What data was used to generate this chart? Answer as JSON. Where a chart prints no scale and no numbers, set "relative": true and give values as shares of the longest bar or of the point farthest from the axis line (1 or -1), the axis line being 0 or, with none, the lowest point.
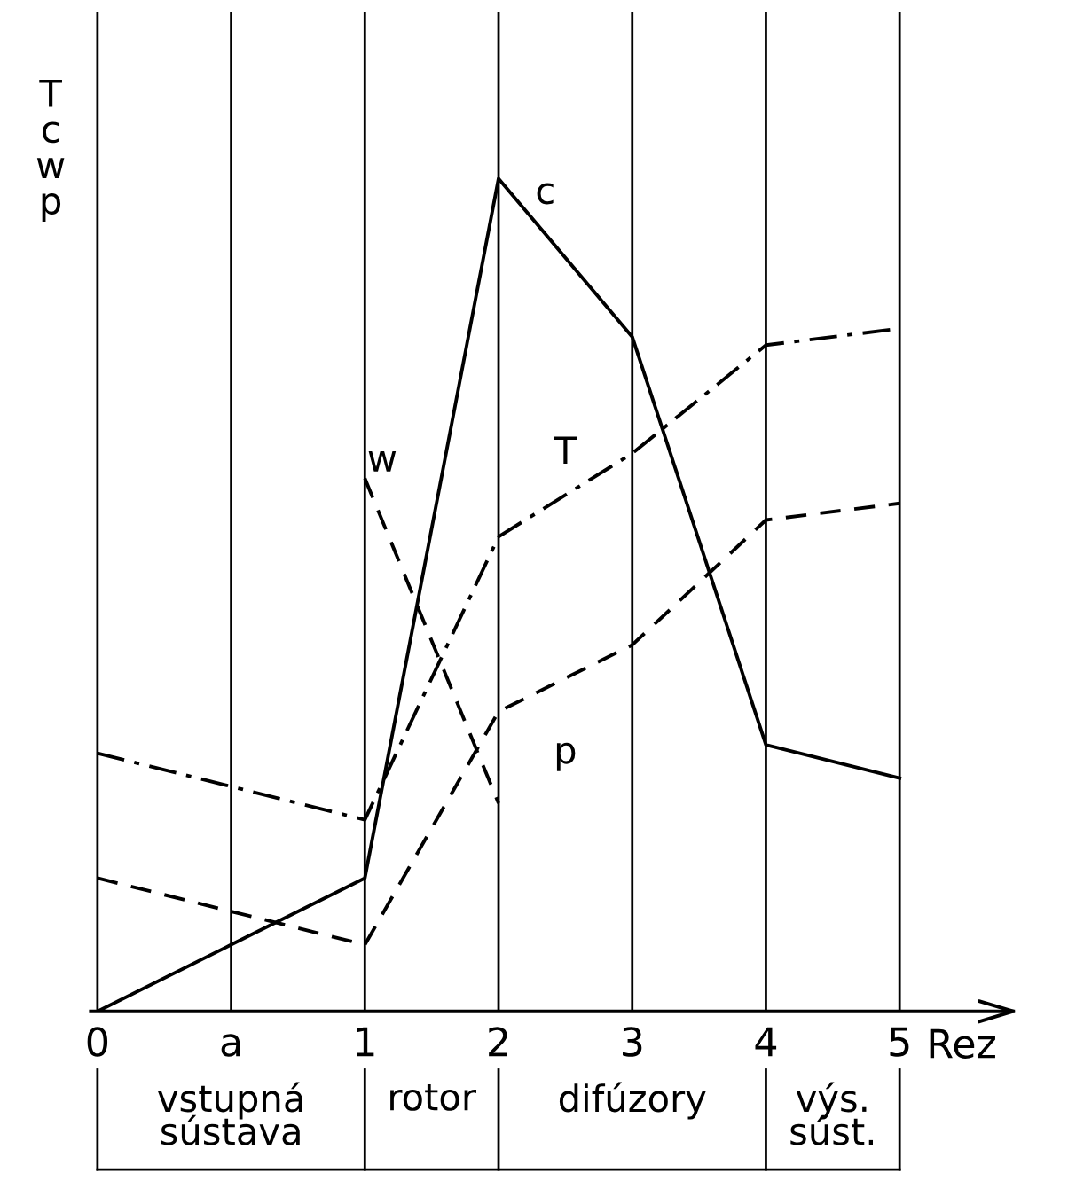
{
  "chart_data": {
    "type": "line",
    "relative": true,
    "categories": [
      "0",
      "a",
      "1",
      "2",
      "3",
      "4",
      "5"
    ],
    "ylabel": "T\nc\nw\np",
    "xlabel": "Rez",
    "grid": "x",
    "legend": false,
    "tick_labels": "x",
    "series": [
      {
        "name": "c",
        "color": "#000000",
        "line_style": "solid",
        "values": [
          0,
          0.08,
          0.16,
          1,
          0.81,
          0.32,
          0.28
        ]
      },
      {
        "name": "T",
        "color": "#000000",
        "line_style": "dashdot",
        "values": [
          0.31,
          0.27,
          0.23,
          0.57,
          0.67,
          0.8,
          0.82
        ]
      },
      {
        "name": "w",
        "color": "#000000",
        "line_style": "dashed",
        "values": [
          null,
          null,
          0.64,
          0.25,
          null,
          null,
          null
        ]
      },
      {
        "name": "p",
        "color": "#000000",
        "line_style": "dashed",
        "values": [
          0.16,
          0.12,
          0.08,
          0.36,
          0.44,
          0.59,
          0.61
        ]
      }
    ],
    "annotations": [
      "vstupná\nsústava",
      "rotor",
      "difúzory",
      "výs.\nsúst."
    ]
  }
}
